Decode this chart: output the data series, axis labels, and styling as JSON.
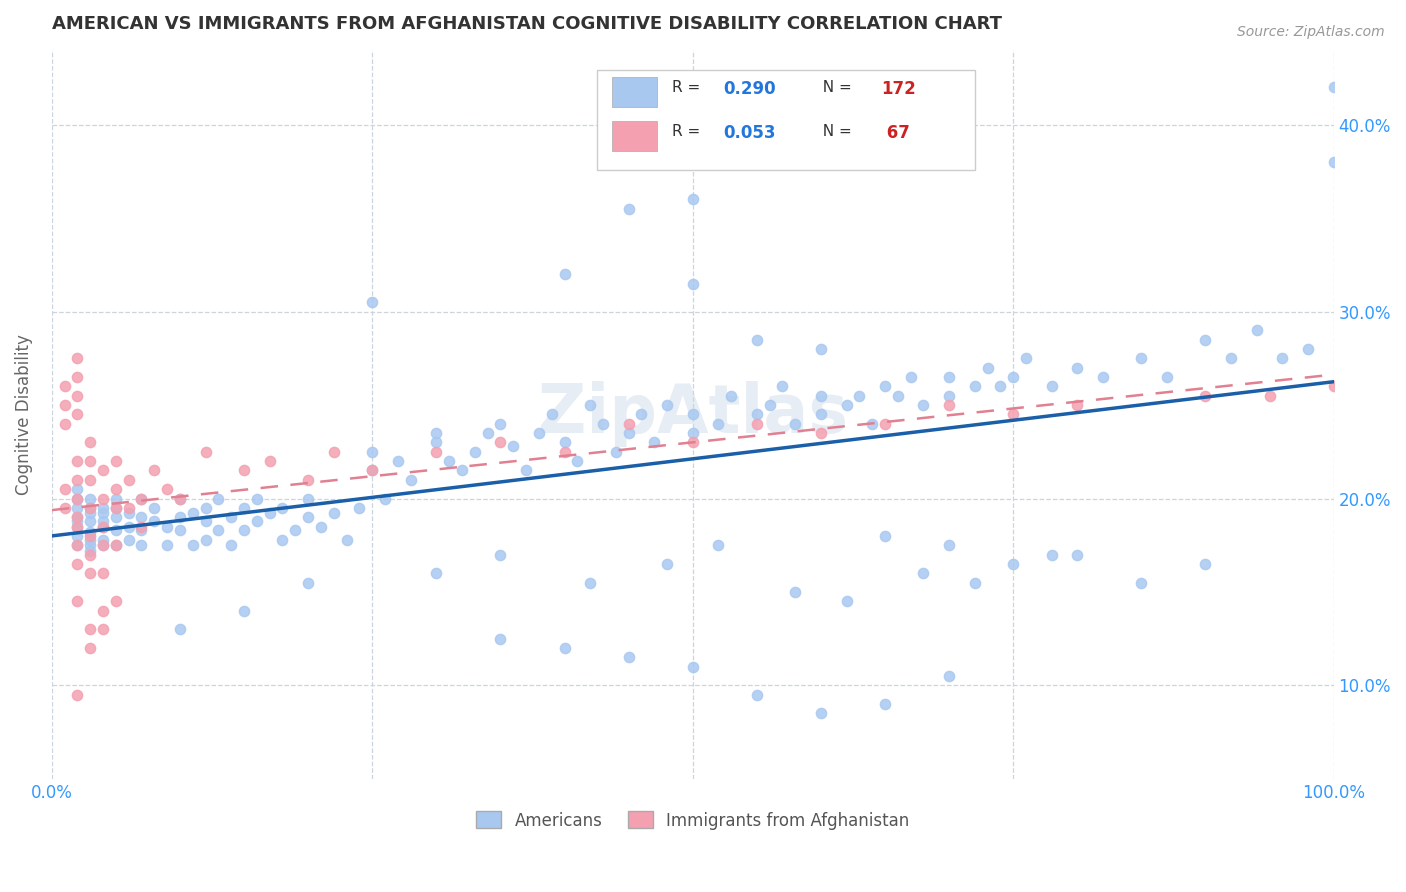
{
  "title": "AMERICAN VS IMMIGRANTS FROM AFGHANISTAN COGNITIVE DISABILITY CORRELATION CHART",
  "source": "Source: ZipAtlas.com",
  "ylabel": "Cognitive Disability",
  "watermark": "ZipAtlas",
  "legend_label_american": "Americans",
  "legend_label_afghan": "Immigrants from Afghanistan",
  "american_color": "#a8c8f0",
  "afghan_color": "#f4a0b0",
  "american_line_color": "#1a5fa8",
  "afghan_line_color": "#e08090",
  "american_x": [
    0.02,
    0.02,
    0.02,
    0.02,
    0.02,
    0.02,
    0.02,
    0.02,
    0.03,
    0.03,
    0.03,
    0.03,
    0.03,
    0.03,
    0.03,
    0.03,
    0.04,
    0.04,
    0.04,
    0.04,
    0.04,
    0.04,
    0.05,
    0.05,
    0.05,
    0.05,
    0.05,
    0.06,
    0.06,
    0.06,
    0.07,
    0.07,
    0.07,
    0.07,
    0.08,
    0.08,
    0.09,
    0.09,
    0.1,
    0.1,
    0.1,
    0.11,
    0.11,
    0.12,
    0.12,
    0.12,
    0.13,
    0.13,
    0.14,
    0.14,
    0.15,
    0.15,
    0.16,
    0.16,
    0.17,
    0.18,
    0.18,
    0.19,
    0.2,
    0.2,
    0.21,
    0.22,
    0.23,
    0.24,
    0.25,
    0.25,
    0.26,
    0.27,
    0.28,
    0.3,
    0.3,
    0.31,
    0.32,
    0.33,
    0.34,
    0.35,
    0.36,
    0.37,
    0.38,
    0.39,
    0.4,
    0.41,
    0.42,
    0.43,
    0.44,
    0.45,
    0.46,
    0.47,
    0.48,
    0.5,
    0.5,
    0.52,
    0.53,
    0.55,
    0.56,
    0.57,
    0.58,
    0.6,
    0.6,
    0.62,
    0.63,
    0.64,
    0.65,
    0.66,
    0.67,
    0.68,
    0.7,
    0.7,
    0.72,
    0.73,
    0.74,
    0.75,
    0.76,
    0.78,
    0.8,
    0.82,
    0.85,
    0.87,
    0.9,
    0.92,
    0.94,
    0.96,
    0.98,
    1.0,
    1.0,
    0.55,
    0.45,
    0.5,
    0.25,
    0.6,
    0.4,
    0.5,
    0.7,
    0.65,
    0.75,
    0.8,
    0.85,
    0.9,
    0.35,
    0.3,
    0.2,
    0.15,
    0.1,
    0.55,
    0.6,
    0.65,
    0.7,
    0.5,
    0.45,
    0.4,
    0.35,
    0.42,
    0.48,
    0.52,
    0.58,
    0.62,
    0.68,
    0.72,
    0.78
  ],
  "american_y": [
    0.195,
    0.185,
    0.175,
    0.205,
    0.19,
    0.18,
    0.2,
    0.188,
    0.192,
    0.182,
    0.175,
    0.2,
    0.188,
    0.178,
    0.195,
    0.172,
    0.185,
    0.192,
    0.178,
    0.195,
    0.188,
    0.175,
    0.19,
    0.2,
    0.183,
    0.175,
    0.195,
    0.185,
    0.192,
    0.178,
    0.19,
    0.2,
    0.183,
    0.175,
    0.188,
    0.195,
    0.185,
    0.175,
    0.19,
    0.2,
    0.183,
    0.192,
    0.175,
    0.188,
    0.195,
    0.178,
    0.2,
    0.183,
    0.19,
    0.175,
    0.195,
    0.183,
    0.2,
    0.188,
    0.192,
    0.178,
    0.195,
    0.183,
    0.2,
    0.19,
    0.185,
    0.192,
    0.178,
    0.195,
    0.225,
    0.215,
    0.2,
    0.22,
    0.21,
    0.23,
    0.235,
    0.22,
    0.215,
    0.225,
    0.235,
    0.24,
    0.228,
    0.215,
    0.235,
    0.245,
    0.23,
    0.22,
    0.25,
    0.24,
    0.225,
    0.235,
    0.245,
    0.23,
    0.25,
    0.235,
    0.245,
    0.24,
    0.255,
    0.245,
    0.25,
    0.26,
    0.24,
    0.255,
    0.245,
    0.25,
    0.255,
    0.24,
    0.26,
    0.255,
    0.265,
    0.25,
    0.265,
    0.255,
    0.26,
    0.27,
    0.26,
    0.265,
    0.275,
    0.26,
    0.27,
    0.265,
    0.275,
    0.265,
    0.285,
    0.275,
    0.29,
    0.275,
    0.28,
    0.38,
    0.42,
    0.285,
    0.355,
    0.36,
    0.305,
    0.28,
    0.32,
    0.315,
    0.175,
    0.18,
    0.165,
    0.17,
    0.155,
    0.165,
    0.17,
    0.16,
    0.155,
    0.14,
    0.13,
    0.095,
    0.085,
    0.09,
    0.105,
    0.11,
    0.115,
    0.12,
    0.125,
    0.155,
    0.165,
    0.175,
    0.15,
    0.145,
    0.16,
    0.155,
    0.17
  ],
  "afghan_x": [
    0.01,
    0.01,
    0.01,
    0.01,
    0.01,
    0.02,
    0.02,
    0.02,
    0.02,
    0.02,
    0.02,
    0.02,
    0.02,
    0.02,
    0.02,
    0.02,
    0.03,
    0.03,
    0.03,
    0.03,
    0.03,
    0.03,
    0.03,
    0.04,
    0.04,
    0.04,
    0.04,
    0.04,
    0.05,
    0.05,
    0.05,
    0.05,
    0.06,
    0.06,
    0.07,
    0.07,
    0.08,
    0.09,
    0.1,
    0.12,
    0.15,
    0.17,
    0.2,
    0.22,
    0.25,
    0.3,
    0.35,
    0.4,
    0.45,
    0.5,
    0.55,
    0.6,
    0.65,
    0.7,
    0.75,
    0.8,
    0.9,
    0.95,
    1.0,
    0.02,
    0.02,
    0.03,
    0.03,
    0.04,
    0.04,
    0.05
  ],
  "afghan_y": [
    0.26,
    0.25,
    0.24,
    0.205,
    0.195,
    0.275,
    0.265,
    0.255,
    0.245,
    0.22,
    0.21,
    0.2,
    0.19,
    0.185,
    0.175,
    0.165,
    0.23,
    0.22,
    0.21,
    0.195,
    0.18,
    0.17,
    0.16,
    0.215,
    0.2,
    0.185,
    0.175,
    0.16,
    0.22,
    0.205,
    0.195,
    0.175,
    0.21,
    0.195,
    0.2,
    0.185,
    0.215,
    0.205,
    0.2,
    0.225,
    0.215,
    0.22,
    0.21,
    0.225,
    0.215,
    0.225,
    0.23,
    0.225,
    0.24,
    0.23,
    0.24,
    0.235,
    0.24,
    0.25,
    0.245,
    0.25,
    0.255,
    0.255,
    0.26,
    0.145,
    0.095,
    0.13,
    0.12,
    0.14,
    0.13,
    0.145
  ],
  "xlim": [
    0.0,
    1.0
  ],
  "ylim": [
    0.05,
    0.44
  ],
  "yticks": [
    0.1,
    0.2,
    0.3,
    0.4
  ],
  "ytick_labels": [
    "10.0%",
    "20.0%",
    "30.0%",
    "40.0%"
  ],
  "xticks": [
    0.0,
    0.25,
    0.5,
    0.75,
    1.0
  ],
  "grid_color": "#ccd5dd",
  "background_color": "#ffffff",
  "title_fontsize": 13,
  "source_fontsize": 10,
  "watermark_fontsize": 48,
  "watermark_color": "#c8d8e8",
  "watermark_alpha": 0.45,
  "tick_color": "#3399ff",
  "ylabel_color": "#666666",
  "legend_text_color": "#333333",
  "legend_num_color": "#2277dd",
  "legend_n_color": "#cc2222"
}
